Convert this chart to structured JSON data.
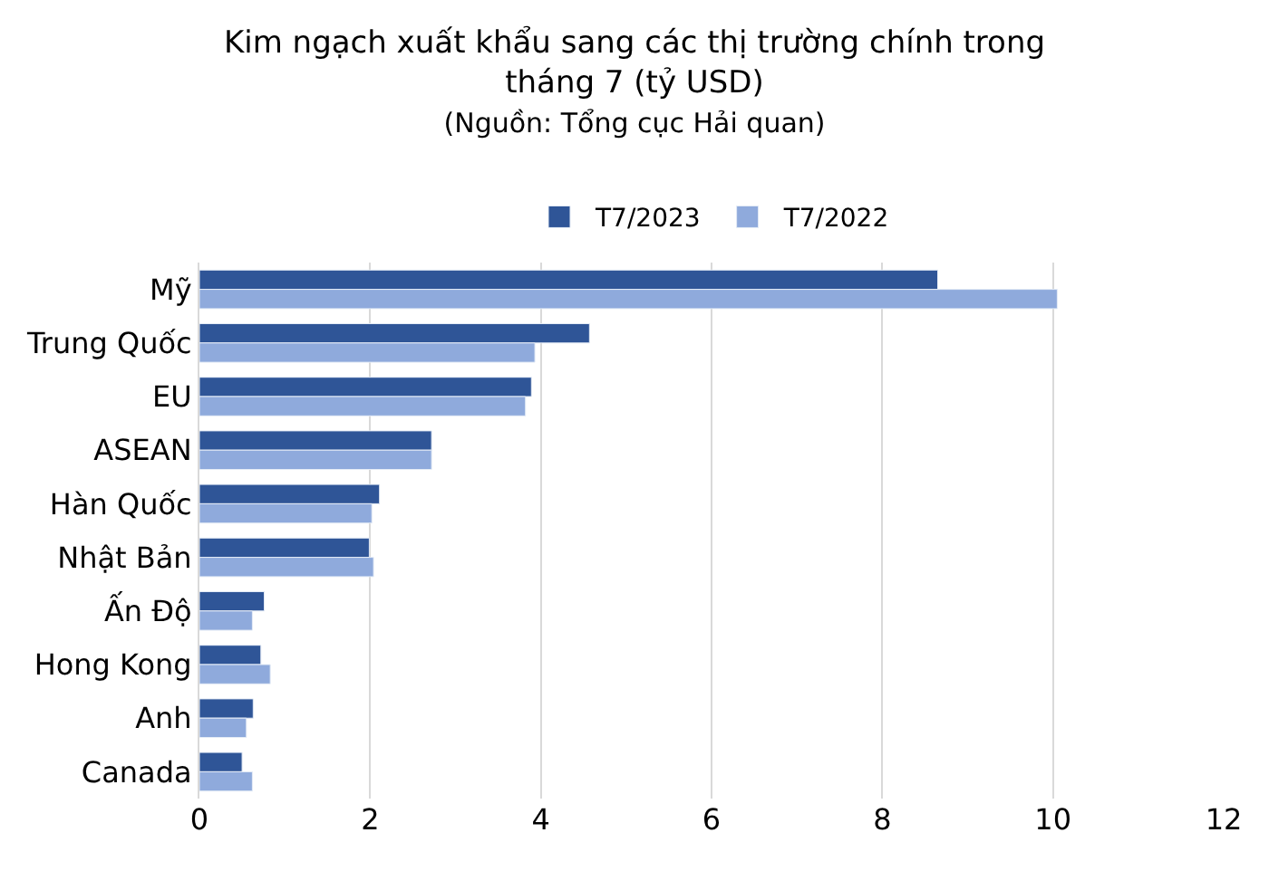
{
  "chart_data": {
    "type": "bar",
    "orientation": "horizontal",
    "title": "Kim ngạch xuất khẩu sang các thị trường chính trong tháng 7 (tỷ USD)",
    "subtitle": "(Nguồn: Tổng cục Hải quan)",
    "categories": [
      "Mỹ",
      "Trung Quốc",
      "EU",
      "ASEAN",
      "Hàn Quốc",
      "Nhật Bản",
      "Ấn Độ",
      "Hong Kong",
      "Anh",
      "Canada"
    ],
    "series": [
      {
        "name": "T7/2023",
        "color": "#2f5597",
        "values": [
          8.65,
          4.57,
          3.89,
          2.72,
          2.11,
          1.99,
          0.76,
          0.72,
          0.63,
          0.5
        ]
      },
      {
        "name": "T7/2022",
        "color": "#8faadc",
        "values": [
          10.05,
          3.93,
          3.82,
          2.72,
          2.02,
          2.04,
          0.62,
          0.83,
          0.55,
          0.62
        ]
      }
    ],
    "xlim": [
      0,
      12
    ],
    "xticks": [
      0,
      2,
      4,
      6,
      8,
      10,
      12
    ],
    "grid": "x",
    "legend": "top"
  }
}
